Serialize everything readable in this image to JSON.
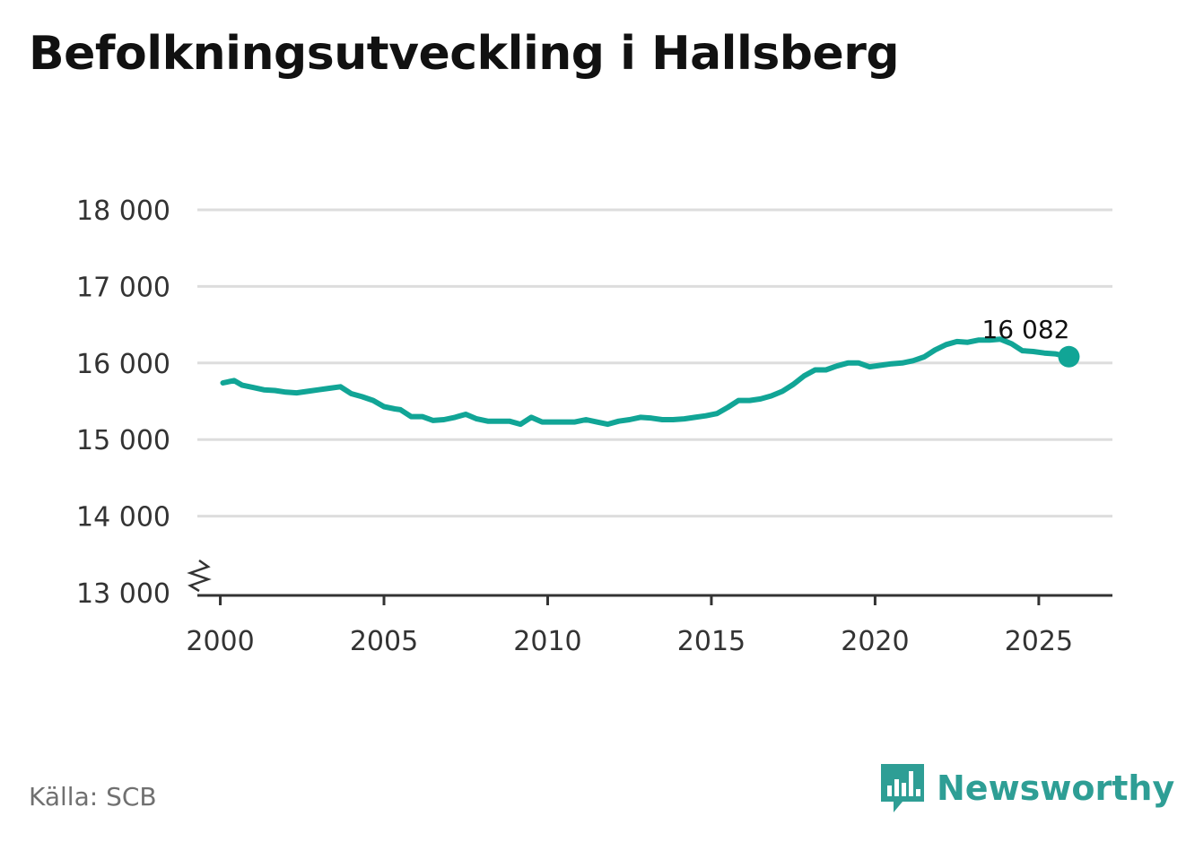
{
  "title": "Befolkningsutveckling i Hallsberg",
  "source": "Källa: SCB",
  "brand": {
    "name": "Newsworthy",
    "icon": "bar-chart-speech-bubble-icon"
  },
  "colors": {
    "line": "#11a596",
    "grid": "#dddddd",
    "axis": "#333333",
    "brand": "#2e9e95"
  },
  "chart_data": {
    "type": "line",
    "title": "Befolkningsutveckling i Hallsberg",
    "xlabel": "",
    "ylabel": "",
    "xlim": [
      1999.3,
      2027.25
    ],
    "ylim": [
      13000,
      18000
    ],
    "y_axis_break": true,
    "x_ticks": [
      2000,
      2005,
      2010,
      2015,
      2020,
      2025
    ],
    "y_ticks": [
      13000,
      14000,
      15000,
      16000,
      17000,
      18000
    ],
    "y_tick_labels": [
      "13 000",
      "14 000",
      "15 000",
      "16 000",
      "17 000",
      "18 000"
    ],
    "last_value_label": "16 082",
    "series": [
      {
        "name": "Hallsberg",
        "x": [
          2000.08,
          2000.42,
          2000.67,
          2001.0,
          2001.33,
          2001.67,
          2002.0,
          2002.33,
          2002.67,
          2003.0,
          2003.33,
          2003.67,
          2004.0,
          2004.33,
          2004.67,
          2005.0,
          2005.33,
          2005.5,
          2005.83,
          2006.17,
          2006.5,
          2006.83,
          2007.17,
          2007.5,
          2007.83,
          2008.17,
          2008.5,
          2008.83,
          2009.17,
          2009.5,
          2009.83,
          2010.17,
          2010.5,
          2010.83,
          2011.17,
          2011.5,
          2011.83,
          2012.17,
          2012.5,
          2012.83,
          2013.17,
          2013.5,
          2013.83,
          2014.17,
          2014.5,
          2014.83,
          2015.17,
          2015.5,
          2015.83,
          2016.17,
          2016.5,
          2016.83,
          2017.17,
          2017.5,
          2017.83,
          2018.17,
          2018.5,
          2018.83,
          2019.17,
          2019.5,
          2019.83,
          2020.17,
          2020.5,
          2020.83,
          2021.17,
          2021.5,
          2021.83,
          2022.17,
          2022.5,
          2022.83,
          2023.17,
          2023.5,
          2023.83,
          2024.17,
          2024.5,
          2024.83,
          2025.17,
          2025.5,
          2025.92
        ],
        "values": [
          15740,
          15770,
          15710,
          15680,
          15650,
          15640,
          15620,
          15610,
          15630,
          15650,
          15670,
          15690,
          15600,
          15560,
          15510,
          15430,
          15400,
          15390,
          15300,
          15300,
          15250,
          15260,
          15290,
          15330,
          15270,
          15240,
          15240,
          15240,
          15200,
          15290,
          15230,
          15230,
          15230,
          15230,
          15260,
          15230,
          15200,
          15240,
          15260,
          15290,
          15280,
          15260,
          15260,
          15270,
          15290,
          15310,
          15340,
          15420,
          15510,
          15510,
          15530,
          15570,
          15630,
          15720,
          15830,
          15910,
          15910,
          15960,
          16000,
          16000,
          15950,
          15970,
          15990,
          16000,
          16030,
          16080,
          16170,
          16240,
          16280,
          16270,
          16300,
          16300,
          16310,
          16250,
          16160,
          16150,
          16130,
          16120,
          16082
        ]
      }
    ]
  }
}
